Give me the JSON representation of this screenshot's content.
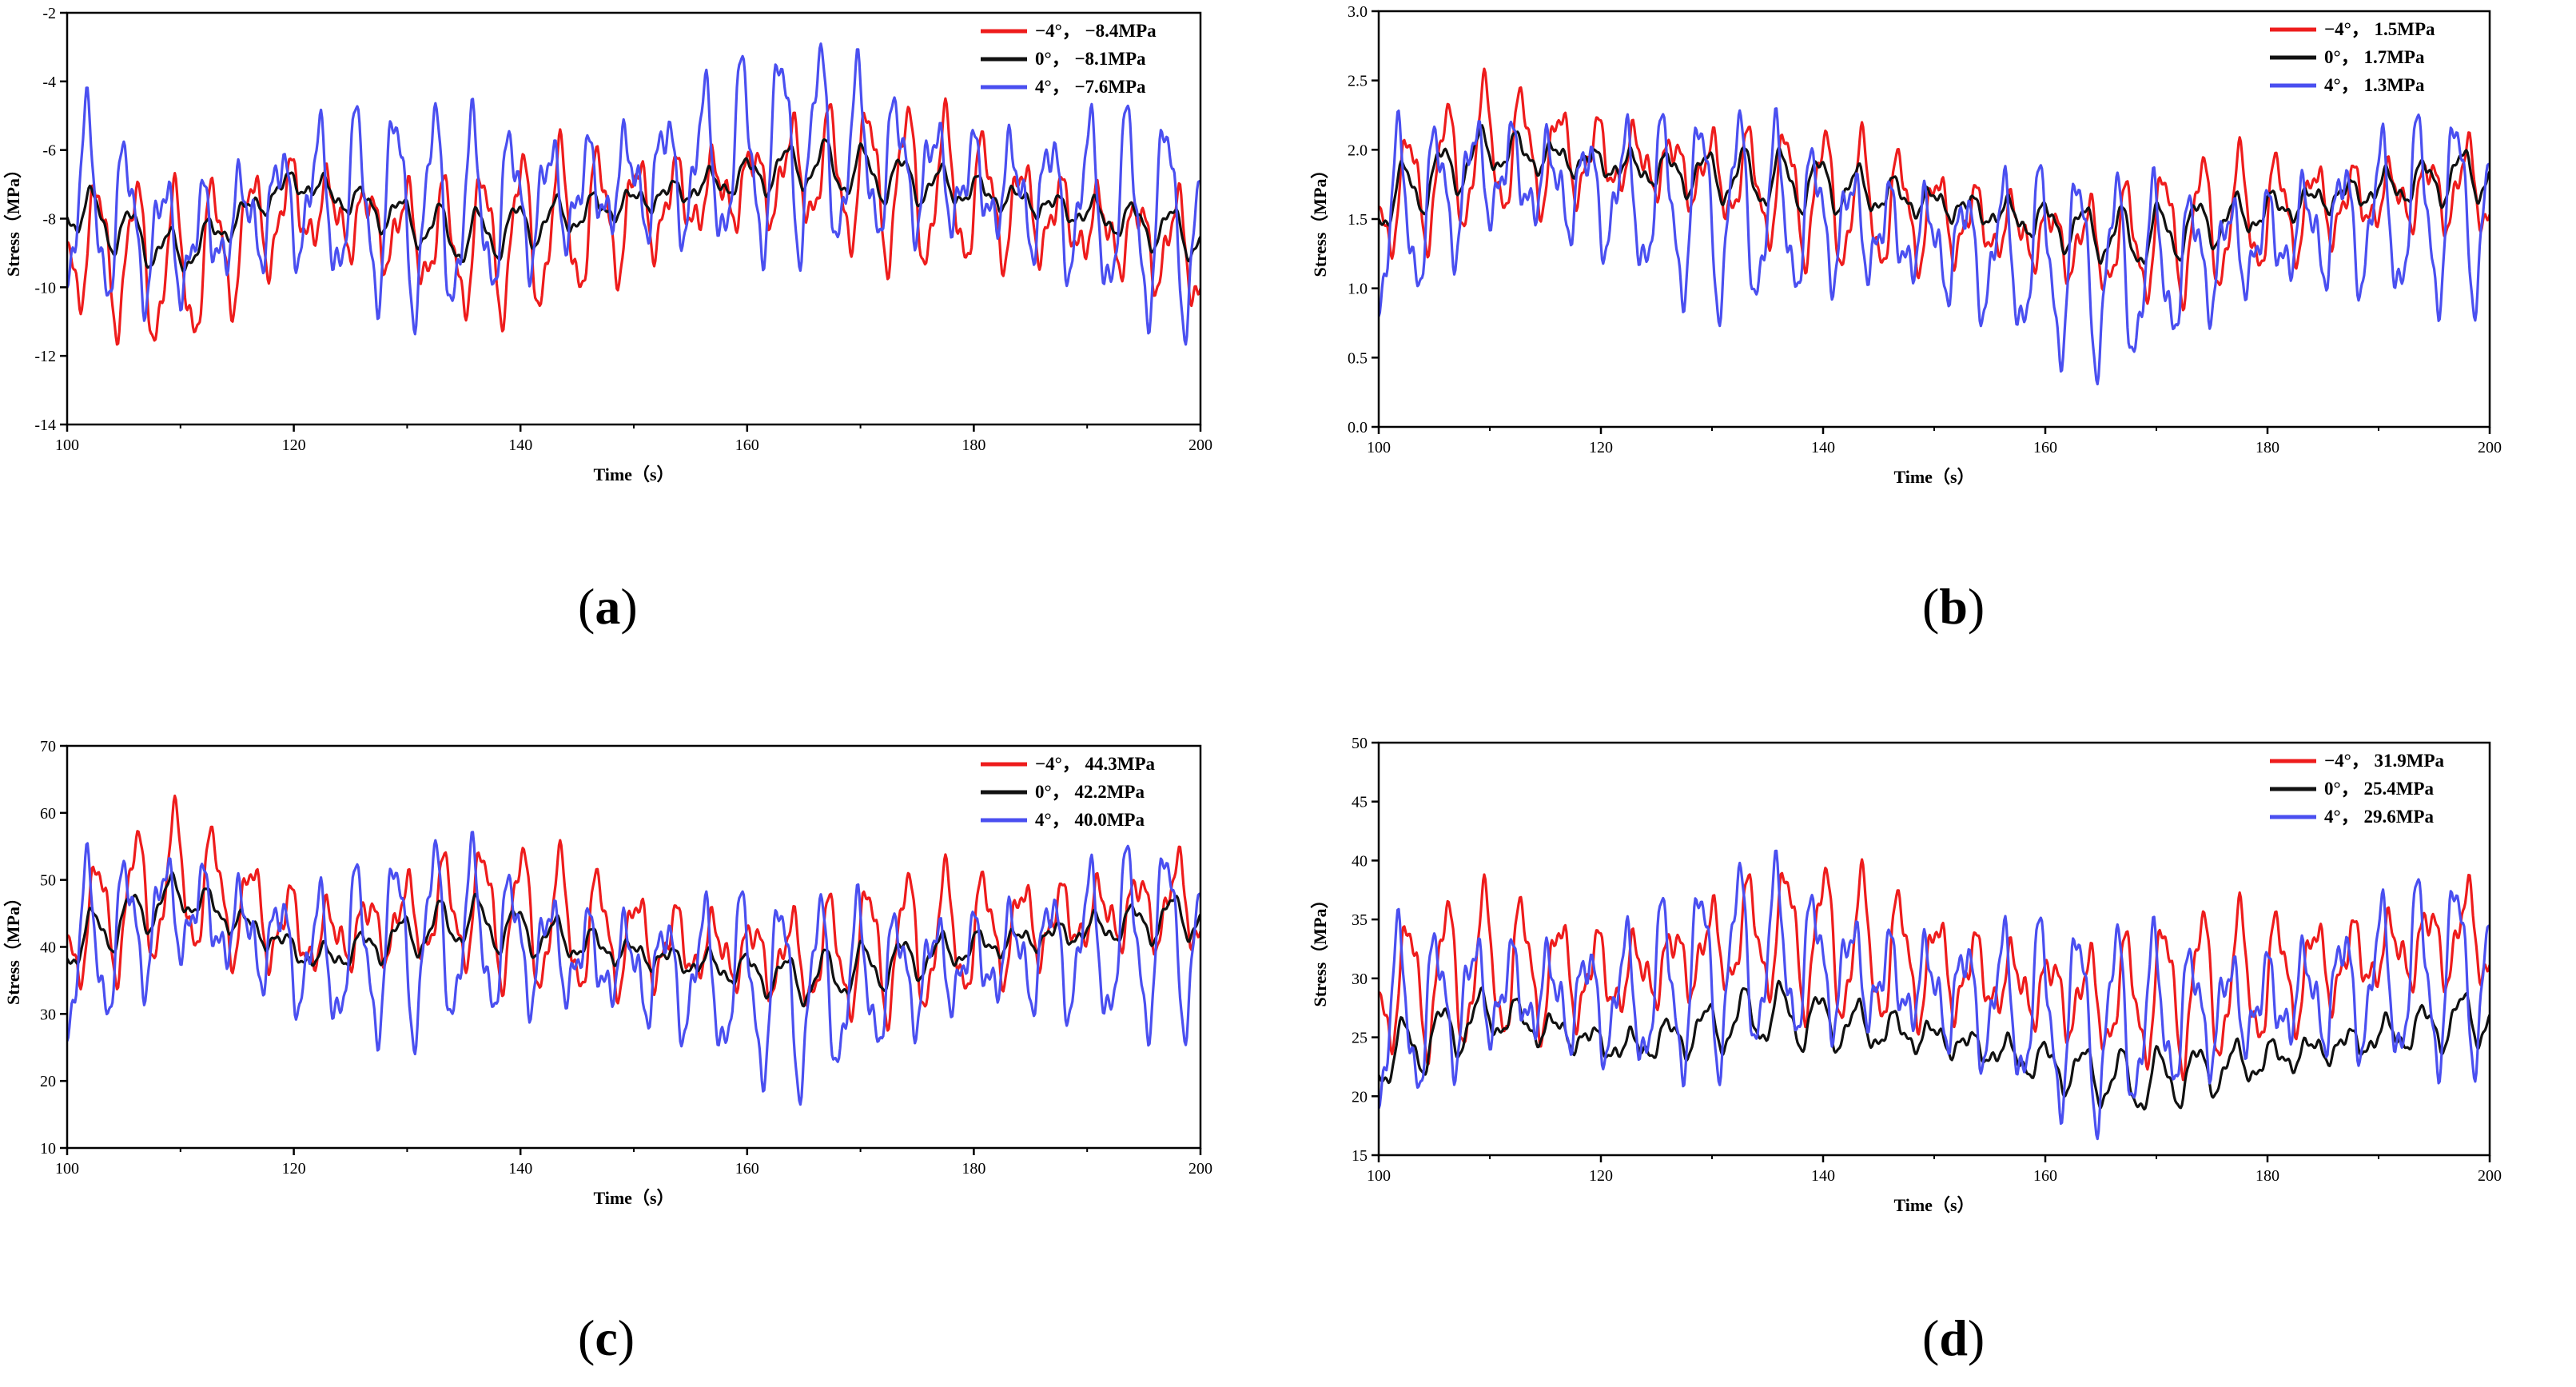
{
  "colors": {
    "neg4": "#ee1c1c",
    "zero": "#111111",
    "pos4": "#4a4ff0"
  },
  "chart_data": [
    {
      "id": "a",
      "panel_label": "a",
      "type": "line",
      "xlabel": "Time（s）",
      "ylabel": "Stress（MPa）",
      "xlim": [
        100,
        200
      ],
      "ylim": [
        -14,
        -2
      ],
      "xticks": [
        100,
        120,
        140,
        160,
        180,
        200
      ],
      "yticks": [
        -14,
        -12,
        -10,
        -8,
        -6,
        -4,
        -2
      ],
      "legend_position": "top-right",
      "series": [
        {
          "name": "−4°，  −8.4MPa",
          "color": "#ee1c1c",
          "mean": -8.4,
          "amp": 2.0,
          "period": 3.4,
          "phase": 0.3,
          "envelope": [
            [
              100,
              -8.6
            ],
            [
              110,
              -9.6
            ],
            [
              120,
              -7.6
            ],
            [
              135,
              -8.8
            ],
            [
              150,
              -7.8
            ],
            [
              165,
              -6.6
            ],
            [
              180,
              -7.4
            ],
            [
              200,
              -9.0
            ]
          ]
        },
        {
          "name": "0°，  −8.1MPa",
          "color": "#111111",
          "mean": -8.1,
          "amp": 0.65,
          "period": 3.4,
          "phase": 1.1,
          "envelope": [
            [
              100,
              -7.6
            ],
            [
              110,
              -9.1
            ],
            [
              120,
              -6.9
            ],
            [
              135,
              -8.6
            ],
            [
              150,
              -7.5
            ],
            [
              165,
              -6.4
            ],
            [
              180,
              -7.2
            ],
            [
              200,
              -8.5
            ]
          ]
        },
        {
          "name": "4°，  −7.6MPa",
          "color": "#4a4ff0",
          "mean": -7.6,
          "amp": 2.6,
          "period": 3.4,
          "phase": 2.0,
          "envelope": [
            [
              100,
              -7.4
            ],
            [
              110,
              -8.8
            ],
            [
              120,
              -7.4
            ],
            [
              135,
              -7.9
            ],
            [
              150,
              -6.9
            ],
            [
              165,
              -5.9
            ],
            [
              180,
              -7.0
            ],
            [
              200,
              -8.2
            ]
          ]
        }
      ]
    },
    {
      "id": "b",
      "panel_label": "b",
      "type": "line",
      "xlabel": "Time（s）",
      "ylabel": "Stress（MPa）",
      "xlim": [
        100,
        200
      ],
      "ylim": [
        0.0,
        3.0
      ],
      "xticks": [
        100,
        120,
        140,
        160,
        180,
        200
      ],
      "yticks": [
        0.0,
        0.5,
        1.0,
        1.5,
        2.0,
        2.5,
        3.0
      ],
      "legend_position": "top-right",
      "series": [
        {
          "name": "−4°，  1.5MPa",
          "color": "#ee1c1c",
          "mean": 1.5,
          "amp": 0.42,
          "period": 3.4,
          "phase": 0.3,
          "envelope": [
            [
              100,
              1.6
            ],
            [
              110,
              2.0
            ],
            [
              125,
              1.9
            ],
            [
              140,
              1.65
            ],
            [
              155,
              1.45
            ],
            [
              165,
              1.3
            ],
            [
              180,
              1.55
            ],
            [
              200,
              1.75
            ]
          ]
        },
        {
          "name": "0°，  1.7MPa",
          "color": "#111111",
          "mean": 1.7,
          "amp": 0.18,
          "period": 3.4,
          "phase": 1.1,
          "envelope": [
            [
              100,
              1.6
            ],
            [
              110,
              2.0
            ],
            [
              125,
              1.85
            ],
            [
              140,
              1.75
            ],
            [
              155,
              1.55
            ],
            [
              168,
              1.35
            ],
            [
              185,
              1.65
            ],
            [
              200,
              1.85
            ]
          ]
        },
        {
          "name": "4°，  1.3MPa",
          "color": "#4a4ff0",
          "mean": 1.3,
          "amp": 0.6,
          "period": 3.4,
          "phase": 2.0,
          "envelope": [
            [
              100,
              1.4
            ],
            [
              110,
              1.85
            ],
            [
              125,
              1.6
            ],
            [
              140,
              1.5
            ],
            [
              155,
              1.25
            ],
            [
              168,
              1.1
            ],
            [
              185,
              1.45
            ],
            [
              200,
              1.6
            ]
          ]
        }
      ]
    },
    {
      "id": "c",
      "panel_label": "c",
      "type": "line",
      "xlabel": "Time（s）",
      "ylabel": "Stress（MPa）",
      "xlim": [
        100,
        200
      ],
      "ylim": [
        10,
        70
      ],
      "xticks": [
        100,
        120,
        140,
        160,
        180,
        200
      ],
      "yticks": [
        10,
        20,
        30,
        40,
        50,
        60,
        70
      ],
      "legend_position": "top-right",
      "series": [
        {
          "name": "−4°，  44.3MPa",
          "color": "#ee1c1c",
          "mean": 44.3,
          "amp": 9.0,
          "period": 3.4,
          "phase": 0.3,
          "envelope": [
            [
              100,
              42
            ],
            [
              110,
              50
            ],
            [
              122,
              41
            ],
            [
              135,
              46
            ],
            [
              150,
              41
            ],
            [
              165,
              38
            ],
            [
              180,
              42
            ],
            [
              200,
              47
            ]
          ]
        },
        {
          "name": "0°，  42.2MPa",
          "color": "#111111",
          "mean": 42.2,
          "amp": 3.2,
          "period": 3.4,
          "phase": 1.1,
          "envelope": [
            [
              100,
              40
            ],
            [
              110,
              48
            ],
            [
              122,
              38
            ],
            [
              135,
              44
            ],
            [
              150,
              39
            ],
            [
              165,
              35
            ],
            [
              180,
              40
            ],
            [
              200,
              45
            ]
          ]
        },
        {
          "name": "4°，  40.0MPa",
          "color": "#4a4ff0",
          "mean": 40.0,
          "amp": 12.0,
          "period": 3.4,
          "phase": 2.0,
          "envelope": [
            [
              100,
              38
            ],
            [
              110,
              46
            ],
            [
              122,
              38
            ],
            [
              135,
              42
            ],
            [
              150,
              37
            ],
            [
              165,
              33
            ],
            [
              180,
              38
            ],
            [
              200,
              42
            ]
          ]
        }
      ]
    },
    {
      "id": "d",
      "panel_label": "d",
      "type": "line",
      "xlabel": "Time（s）",
      "ylabel": "Stress（MPa）",
      "xlim": [
        100,
        200
      ],
      "ylim": [
        15,
        50
      ],
      "xticks": [
        100,
        120,
        140,
        160,
        180,
        200
      ],
      "yticks": [
        15,
        20,
        25,
        30,
        35,
        40,
        45,
        50
      ],
      "legend_position": "top-right",
      "series": [
        {
          "name": "−4°，  31.9MPa",
          "color": "#ee1c1c",
          "mean": 31.9,
          "amp": 5.5,
          "period": 3.4,
          "phase": 0.3,
          "envelope": [
            [
              100,
              29
            ],
            [
              110,
              31
            ],
            [
              122,
              30
            ],
            [
              135,
              34
            ],
            [
              150,
              31
            ],
            [
              165,
              28
            ],
            [
              180,
              30
            ],
            [
              200,
              34
            ]
          ]
        },
        {
          "name": "0°，  25.4MPa",
          "color": "#111111",
          "mean": 25.4,
          "amp": 2.2,
          "period": 3.4,
          "phase": 1.1,
          "envelope": [
            [
              100,
              23
            ],
            [
              110,
              27
            ],
            [
              122,
              24
            ],
            [
              135,
              27
            ],
            [
              150,
              25
            ],
            [
              168,
              21
            ],
            [
              185,
              24
            ],
            [
              200,
              27
            ]
          ]
        },
        {
          "name": "4°，  29.6MPa",
          "color": "#4a4ff0",
          "mean": 29.6,
          "amp": 7.0,
          "period": 3.4,
          "phase": 2.0,
          "envelope": [
            [
              100,
              26
            ],
            [
              110,
              29
            ],
            [
              122,
              28
            ],
            [
              135,
              32
            ],
            [
              150,
              29
            ],
            [
              165,
              26
            ],
            [
              180,
              28
            ],
            [
              200,
              31
            ]
          ]
        }
      ]
    }
  ]
}
